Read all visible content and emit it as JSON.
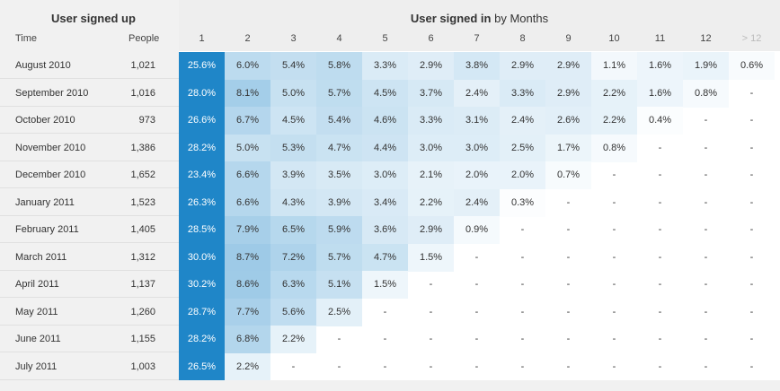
{
  "left": {
    "title": "User signed up",
    "col_time": "Time",
    "col_people": "People"
  },
  "right": {
    "title_bold": "User signed in",
    "title_rest": " by Months",
    "months": [
      "1",
      "2",
      "3",
      "4",
      "5",
      "6",
      "7",
      "8",
      "9",
      "10",
      "11",
      "12",
      "> 12"
    ]
  },
  "rows": [
    {
      "time": "August 2010",
      "people": "1,021",
      "values": [
        "25.6%",
        "6.0%",
        "5.4%",
        "5.8%",
        "3.3%",
        "2.9%",
        "3.8%",
        "2.9%",
        "2.9%",
        "1.1%",
        "1.6%",
        "1.9%",
        "0.6%"
      ]
    },
    {
      "time": "September 2010",
      "people": "1,016",
      "values": [
        "28.0%",
        "8.1%",
        "5.0%",
        "5.7%",
        "4.5%",
        "3.7%",
        "2.4%",
        "3.3%",
        "2.9%",
        "2.2%",
        "1.6%",
        "0.8%",
        "-"
      ]
    },
    {
      "time": "October 2010",
      "people": "973",
      "values": [
        "26.6%",
        "6.7%",
        "4.5%",
        "5.4%",
        "4.6%",
        "3.3%",
        "3.1%",
        "2.4%",
        "2.6%",
        "2.2%",
        "0.4%",
        "-",
        "-"
      ]
    },
    {
      "time": "November 2010",
      "people": "1,386",
      "values": [
        "28.2%",
        "5.0%",
        "5.3%",
        "4.7%",
        "4.4%",
        "3.0%",
        "3.0%",
        "2.5%",
        "1.7%",
        "0.8%",
        "-",
        "-",
        "-"
      ]
    },
    {
      "time": "December 2010",
      "people": "1,652",
      "values": [
        "23.4%",
        "6.6%",
        "3.9%",
        "3.5%",
        "3.0%",
        "2.1%",
        "2.0%",
        "2.0%",
        "0.7%",
        "-",
        "-",
        "-",
        "-"
      ]
    },
    {
      "time": "January 2011",
      "people": "1,523",
      "values": [
        "26.3%",
        "6.6%",
        "4.3%",
        "3.9%",
        "3.4%",
        "2.2%",
        "2.4%",
        "0.3%",
        "-",
        "-",
        "-",
        "-",
        "-"
      ]
    },
    {
      "time": "February 2011",
      "people": "1,405",
      "values": [
        "28.5%",
        "7.9%",
        "6.5%",
        "5.9%",
        "3.6%",
        "2.9%",
        "0.9%",
        "-",
        "-",
        "-",
        "-",
        "-",
        "-"
      ]
    },
    {
      "time": "March 2011",
      "people": "1,312",
      "values": [
        "30.0%",
        "8.7%",
        "7.2%",
        "5.7%",
        "4.7%",
        "1.5%",
        "-",
        "-",
        "-",
        "-",
        "-",
        "-",
        "-"
      ]
    },
    {
      "time": "April 2011",
      "people": "1,137",
      "values": [
        "30.2%",
        "8.6%",
        "6.3%",
        "5.1%",
        "1.5%",
        "-",
        "-",
        "-",
        "-",
        "-",
        "-",
        "-",
        "-"
      ]
    },
    {
      "time": "May 2011",
      "people": "1,260",
      "values": [
        "28.7%",
        "7.7%",
        "5.6%",
        "2.5%",
        "-",
        "-",
        "-",
        "-",
        "-",
        "-",
        "-",
        "-",
        "-"
      ]
    },
    {
      "time": "June 2011",
      "people": "1,155",
      "values": [
        "28.2%",
        "6.8%",
        "2.2%",
        "-",
        "-",
        "-",
        "-",
        "-",
        "-",
        "-",
        "-",
        "-",
        "-"
      ]
    },
    {
      "time": "July 2011",
      "people": "1,003",
      "values": [
        "26.5%",
        "2.2%",
        "-",
        "-",
        "-",
        "-",
        "-",
        "-",
        "-",
        "-",
        "-",
        "-",
        "-"
      ]
    }
  ],
  "colors": {
    "accent": "#1f86c8",
    "header_bg": "#eeeeee",
    "left_bg": "#f1f1f1"
  }
}
